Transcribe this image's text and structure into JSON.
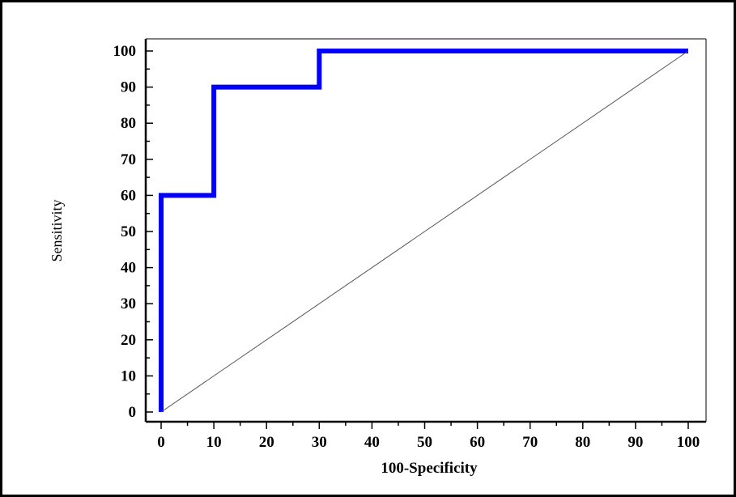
{
  "chart_data": {
    "type": "line",
    "title": "",
    "xlabel": "100-Specificity",
    "ylabel": "Sensitivity",
    "xlim": [
      0,
      100
    ],
    "ylim": [
      0,
      100
    ],
    "x_ticks": [
      "0",
      "10",
      "20",
      "30",
      "40",
      "50",
      "60",
      "70",
      "80",
      "90",
      "100"
    ],
    "y_ticks": [
      "0",
      "10",
      "20",
      "30",
      "40",
      "50",
      "60",
      "70",
      "80",
      "90",
      "100"
    ],
    "grid": false,
    "legend": "none",
    "series": [
      {
        "style": "step",
        "color": "#0000ff",
        "points": [
          [
            0,
            0
          ],
          [
            0,
            60
          ],
          [
            10,
            60
          ],
          [
            10,
            90
          ],
          [
            30,
            90
          ],
          [
            30,
            100
          ],
          [
            100,
            100
          ]
        ]
      },
      {
        "style": "reference-diagonal",
        "color": "#555555",
        "points": [
          [
            0,
            0
          ],
          [
            100,
            100
          ]
        ]
      }
    ]
  }
}
